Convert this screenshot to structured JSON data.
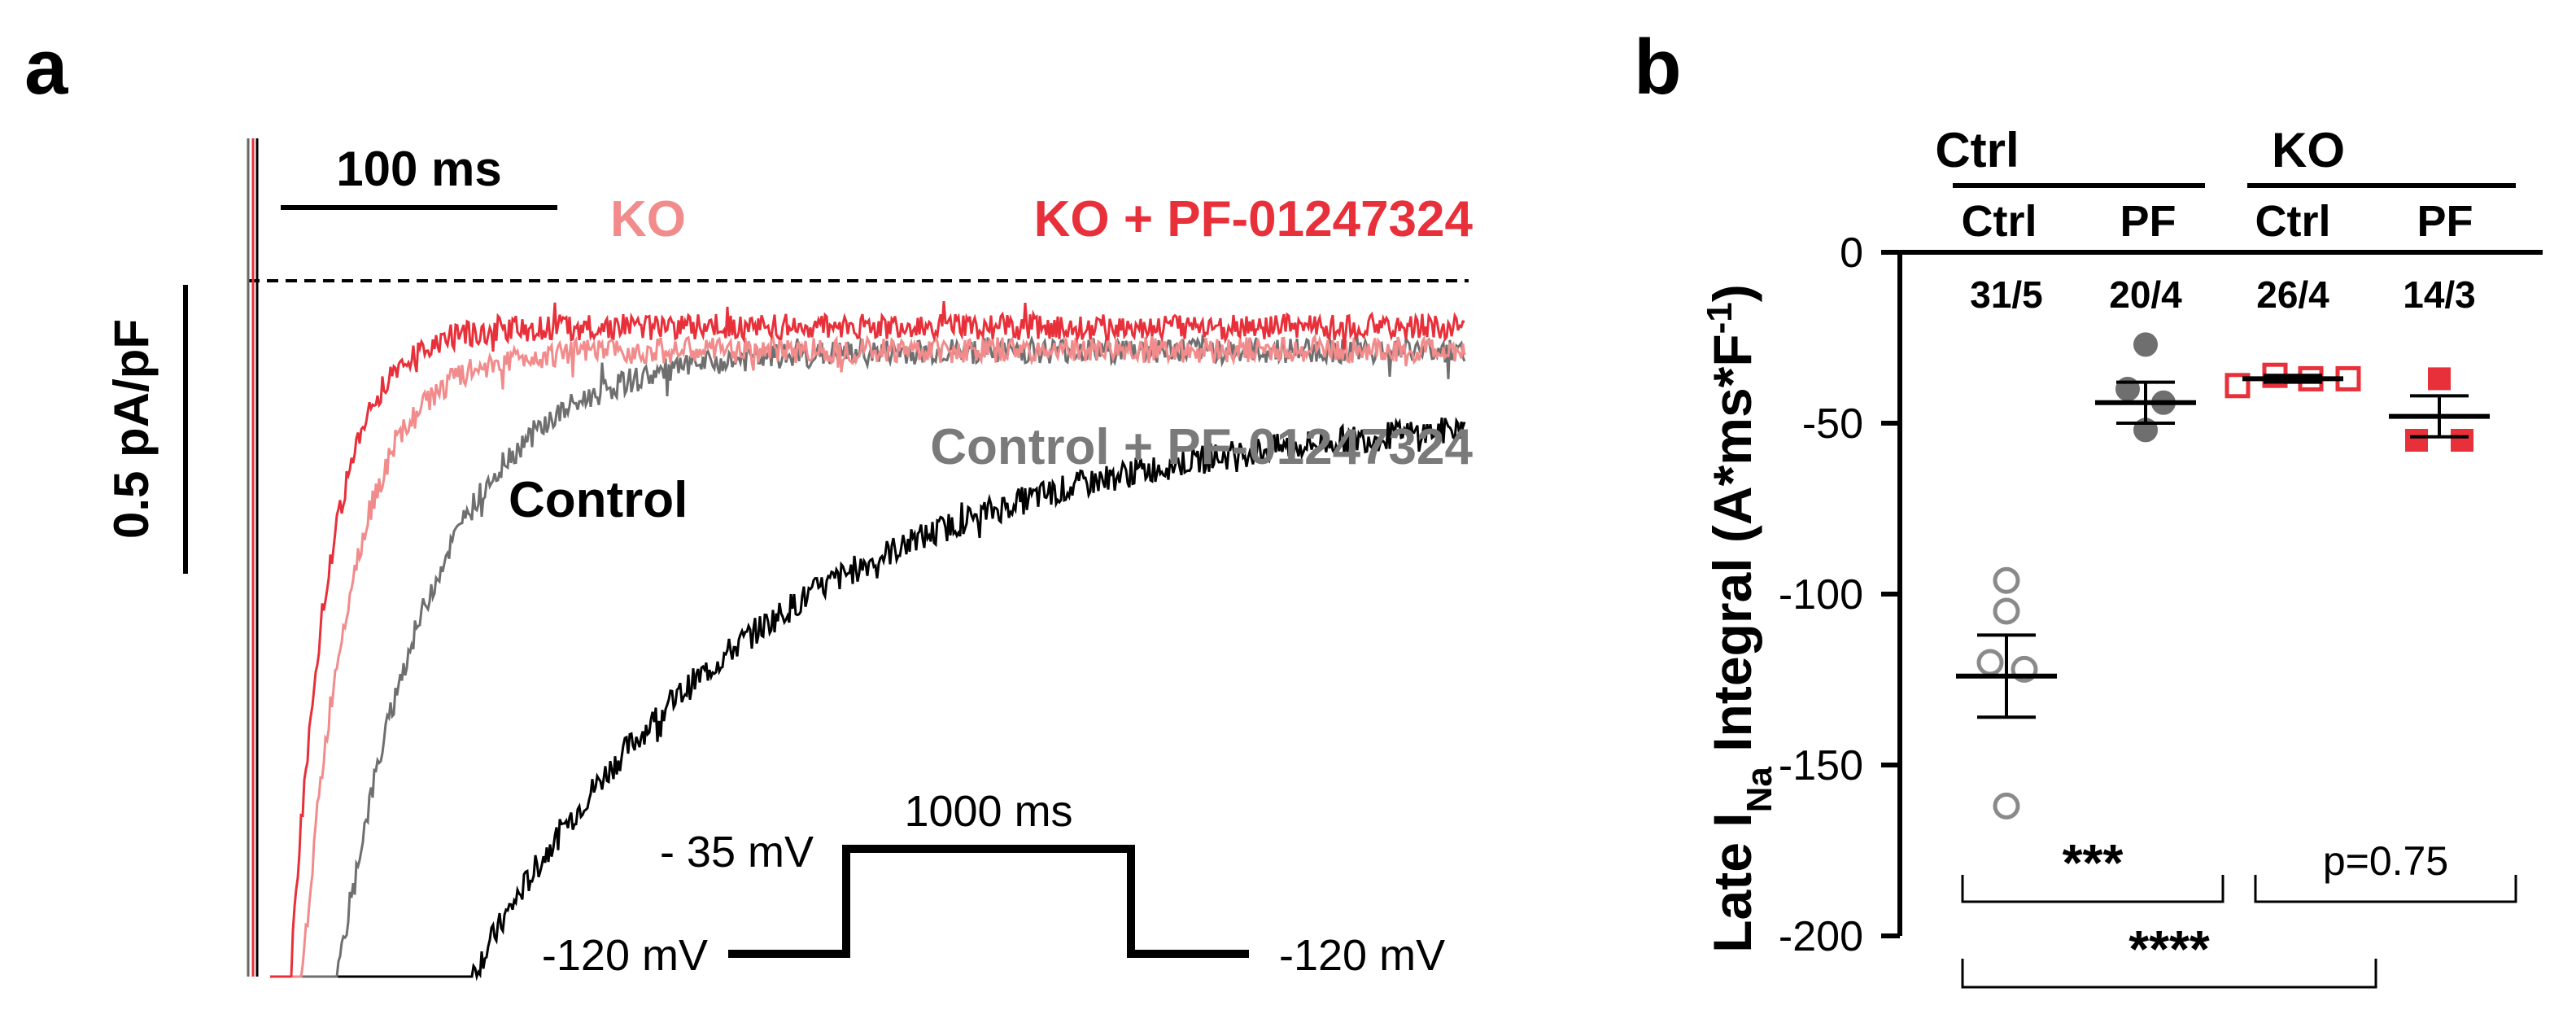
{
  "chart_data": [
    {
      "type": "line",
      "panel": "a",
      "scale_bars": {
        "time": "100 ms",
        "current": "0.5 pA/pF"
      },
      "traces": [
        {
          "name": "KO",
          "color": "#f28b8b",
          "tau_ms": 18,
          "steady_state": -0.12
        },
        {
          "name": "KO + PF-01247324",
          "color": "#e8303a",
          "tau_ms": 14,
          "steady_state": -0.08
        },
        {
          "name": "Control + PF-01247324",
          "color": "#6f6f6f",
          "tau_ms": 35,
          "steady_state": -0.12
        },
        {
          "name": "Control",
          "color": "#000000",
          "tau_ms": 110,
          "steady_state": -0.22
        }
      ],
      "legend": {
        "ko": "KO",
        "ko_pf": "KO + PF-01247324",
        "ctrl_pf": "Control + PF-01247324",
        "ctrl": "Control"
      },
      "protocol": {
        "holding": "-120 mV",
        "step": "- 35 mV",
        "return": "-120 mV",
        "duration": "1000 ms",
        "holding_mV": -120,
        "step_mV": -35,
        "duration_ms": 1000
      }
    },
    {
      "type": "scatter",
      "panel": "b",
      "ylabel_main": "Late I",
      "ylabel_sub": "Na",
      "ylabel_rest": " Integral (A*ms*F",
      "ylabel_sup": "-1",
      "ylabel_end": ")",
      "ylim": [
        -200,
        0
      ],
      "yticks": [
        0,
        -50,
        -100,
        -150,
        -200
      ],
      "groups": [
        {
          "label": "Ctrl",
          "sub": [
            "Ctrl",
            "PF"
          ]
        },
        {
          "label": "KO",
          "sub": [
            "Ctrl",
            "PF"
          ]
        }
      ],
      "series": [
        {
          "name": "Ctrl Ctrl",
          "n_label": "31/5",
          "color": "#8a8a8a",
          "marker": "circle",
          "filled": false,
          "values": [
            -96,
            -105,
            -120,
            -122,
            -162
          ],
          "mean": -124,
          "sem": 12
        },
        {
          "name": "Ctrl PF",
          "n_label": "20/4",
          "color": "#6f6f6f",
          "marker": "circle",
          "filled": true,
          "values": [
            -27,
            -40,
            -44,
            -52
          ],
          "mean": -44,
          "sem": 6
        },
        {
          "name": "KO Ctrl",
          "n_label": "26/4",
          "color": "#e8303a",
          "marker": "square",
          "filled": false,
          "values": [
            -39,
            -36,
            -37,
            -37
          ],
          "mean": -37,
          "sem": 1
        },
        {
          "name": "KO PF",
          "n_label": "14/3",
          "color": "#e8303a",
          "marker": "square",
          "filled": true,
          "values": [
            -37,
            -55,
            -55
          ],
          "mean": -48,
          "sem": 6
        }
      ],
      "significance": [
        {
          "label": "***",
          "from": 0,
          "to": 1
        },
        {
          "label": "p=0.75",
          "from": 2,
          "to": 3
        },
        {
          "label": "****",
          "from": 0,
          "to": 2
        }
      ]
    }
  ],
  "panel_labels": {
    "a": "a",
    "b": "b"
  }
}
